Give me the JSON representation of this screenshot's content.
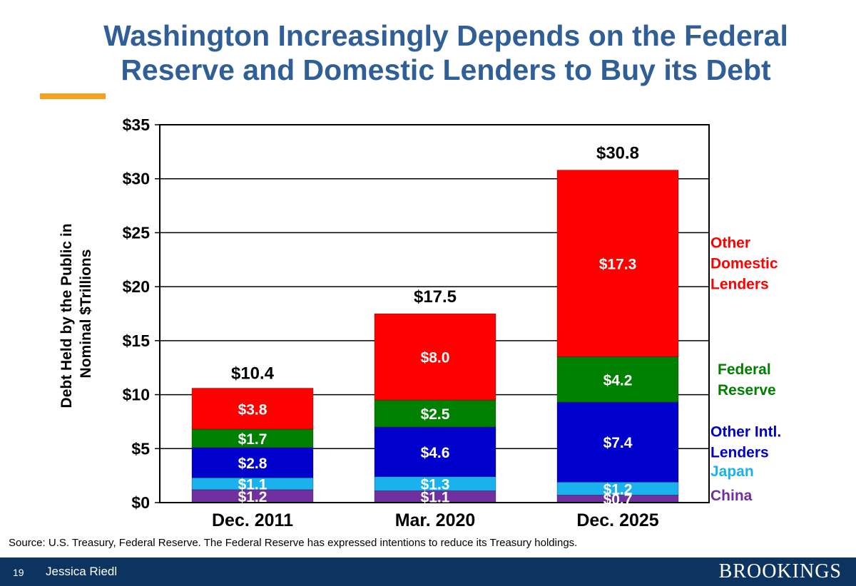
{
  "slide": {
    "title_line1": "Washington Increasingly Depends on the Federal",
    "title_line2": "Reserve and Domestic Lenders to Buy its Debt",
    "source": "Source: U.S. Treasury, Federal Reserve. The Federal Reserve has expressed intentions to reduce its Treasury holdings.",
    "page_number": "19",
    "author": "Jessica Riedl",
    "logo": "BROOKINGS"
  },
  "chart_data": {
    "type": "bar",
    "stacked": true,
    "categories": [
      "Dec. 2011",
      "Mar. 2020",
      "Dec. 2025"
    ],
    "ylabel_line1": "Debt Held by the Public in",
    "ylabel_line2": "Nominal $Trillions",
    "ylim": [
      0,
      35
    ],
    "yticks": [
      0,
      5,
      10,
      15,
      20,
      25,
      30,
      35
    ],
    "ytick_labels": [
      "$0",
      "$5",
      "$10",
      "$15",
      "$20",
      "$25",
      "$30",
      "$35"
    ],
    "grid": true,
    "legend_placement": "right",
    "totals": [
      10.4,
      17.5,
      30.8
    ],
    "total_labels": [
      "$10.4",
      "$17.5",
      "$30.8"
    ],
    "series": [
      {
        "name": "China",
        "legend_lines": [
          "China"
        ],
        "color": "#7030a0",
        "label_color": "#7030a0",
        "values": [
          1.2,
          1.1,
          0.7
        ],
        "labels": [
          "$1.2",
          "$1.1",
          "$0.7"
        ]
      },
      {
        "name": "Japan",
        "legend_lines": [
          "Japan"
        ],
        "color": "#1ab2ee",
        "label_color": "#1ab2ee",
        "values": [
          1.1,
          1.3,
          1.2
        ],
        "labels": [
          "$1.1",
          "$1.3",
          "$1.2"
        ]
      },
      {
        "name": "Other Intl. Lenders",
        "legend_lines": [
          "Other Intl.",
          "Lenders"
        ],
        "color": "#0000cc",
        "label_color": "#0000cc",
        "values": [
          2.8,
          4.6,
          7.4
        ],
        "labels": [
          "$2.8",
          "$4.6",
          "$7.4"
        ]
      },
      {
        "name": "Federal Reserve",
        "legend_lines": [
          "Federal",
          "Reserve"
        ],
        "color": "#008000",
        "label_color": "#008000",
        "values": [
          1.7,
          2.5,
          4.2
        ],
        "labels": [
          "$1.7",
          "$2.5",
          "$4.2"
        ]
      },
      {
        "name": "Other Domestic Lenders",
        "legend_lines": [
          "Other",
          "Domestic",
          "Lenders"
        ],
        "color": "#ff0000",
        "label_color": "#ff0000",
        "values": [
          3.8,
          8.0,
          17.3
        ],
        "labels": [
          "$3.8",
          "$8.0",
          "$17.3"
        ]
      }
    ]
  }
}
